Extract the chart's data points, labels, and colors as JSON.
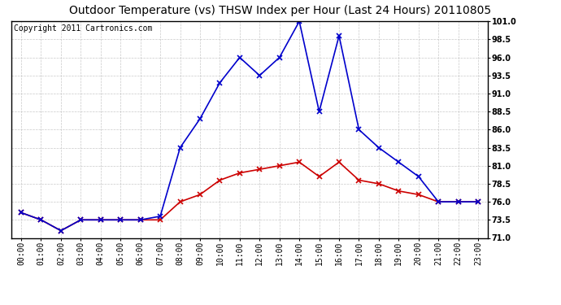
{
  "title": "Outdoor Temperature (vs) THSW Index per Hour (Last 24 Hours) 20110805",
  "copyright": "Copyright 2011 Cartronics.com",
  "hours": [
    "00:00",
    "01:00",
    "02:00",
    "03:00",
    "04:00",
    "05:00",
    "06:00",
    "07:00",
    "08:00",
    "09:00",
    "10:00",
    "11:00",
    "12:00",
    "13:00",
    "14:00",
    "15:00",
    "16:00",
    "17:00",
    "18:00",
    "19:00",
    "20:00",
    "21:00",
    "22:00",
    "23:00"
  ],
  "temp": [
    74.5,
    73.5,
    72.0,
    73.5,
    73.5,
    73.5,
    73.5,
    73.5,
    76.0,
    77.0,
    79.0,
    80.0,
    80.5,
    81.0,
    81.5,
    79.5,
    81.5,
    79.0,
    78.5,
    77.5,
    77.0,
    76.0,
    76.0,
    76.0
  ],
  "thsw": [
    74.5,
    73.5,
    72.0,
    73.5,
    73.5,
    73.5,
    73.5,
    74.0,
    83.5,
    87.5,
    92.5,
    96.0,
    93.5,
    96.0,
    101.0,
    88.5,
    99.0,
    86.0,
    83.5,
    81.5,
    79.5,
    76.0,
    76.0,
    76.0
  ],
  "temp_color": "#cc0000",
  "thsw_color": "#0000cc",
  "fig_bg": "#ffffff",
  "plot_bg": "#ffffff",
  "grid_color": "#bbbbbb",
  "ylim": [
    71.0,
    101.0
  ],
  "yticks": [
    71.0,
    73.5,
    76.0,
    78.5,
    81.0,
    83.5,
    86.0,
    88.5,
    91.0,
    93.5,
    96.0,
    98.5,
    101.0
  ],
  "marker": "x",
  "marker_size": 4,
  "linewidth": 1.2,
  "title_fontsize": 10,
  "tick_fontsize": 7,
  "copyright_fontsize": 7
}
